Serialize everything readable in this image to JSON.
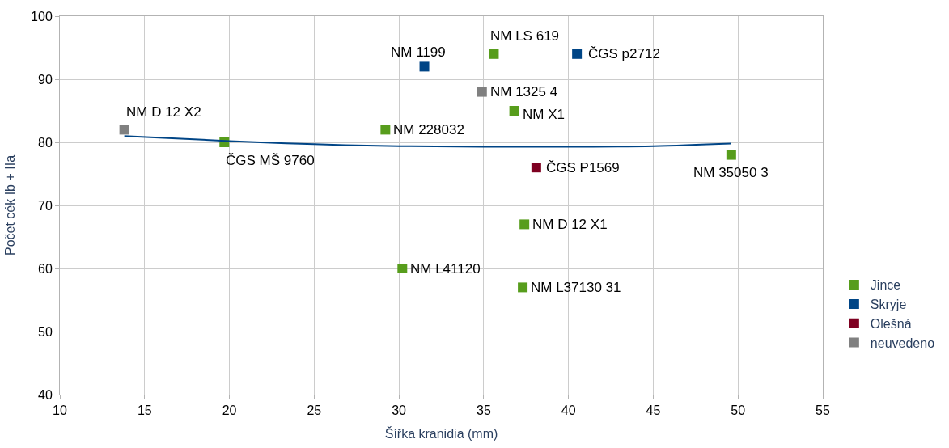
{
  "chart_data": {
    "type": "scatter",
    "xlabel": "Šířka kranidia (mm)",
    "ylabel": "Počet cék Ib + IIa",
    "xlim": [
      10,
      55
    ],
    "xticks": [
      10,
      15,
      20,
      25,
      30,
      35,
      40,
      45,
      50,
      55
    ],
    "ylim": [
      40,
      100
    ],
    "yticks": [
      40,
      50,
      60,
      70,
      80,
      90,
      100
    ],
    "grid": true,
    "legend": "right",
    "marker": "square",
    "series": [
      {
        "name": "Jince",
        "color": "#579d1c",
        "x": [
          19.7,
          29.2,
          35.6,
          36.8,
          37.4,
          37.3,
          30.2,
          49.6
        ],
        "values": [
          80,
          82,
          94,
          85,
          67,
          57,
          60,
          78
        ]
      },
      {
        "name": "Skryje",
        "color": "#004586",
        "x": [
          31.5,
          40.5
        ],
        "values": [
          92,
          94
        ]
      },
      {
        "name": "Olešná",
        "color": "#7e0021",
        "x": [
          38.1
        ],
        "values": [
          76
        ]
      },
      {
        "name": "neuvedeno",
        "color": "#808080",
        "x": [
          13.8,
          34.9
        ],
        "values": [
          82,
          88
        ]
      },
      {
        "type": "line",
        "color": "#004586",
        "marker": "none",
        "x": [
          13.8,
          20,
          25,
          30,
          35,
          40,
          45,
          49.6
        ],
        "values": [
          81,
          80.2,
          79.7,
          79.4,
          79.3,
          79.3,
          79.4,
          79.8
        ]
      }
    ],
    "annotations": [
      {
        "text": "NM D 12 X2",
        "x": 13.8,
        "y": 82
      },
      {
        "text": "ČGS MŠ 9760",
        "x": 19.7,
        "y": 80
      },
      {
        "text": "NM 228032",
        "x": 29.2,
        "y": 82
      },
      {
        "text": "NM 1199",
        "x": 31.5,
        "y": 92
      },
      {
        "text": "NM LS 619",
        "x": 35.6,
        "y": 94
      },
      {
        "text": "NM 1325 4",
        "x": 34.9,
        "y": 88
      },
      {
        "text": "NM X1",
        "x": 36.8,
        "y": 85
      },
      {
        "text": "ČGS p2712",
        "x": 40.5,
        "y": 94
      },
      {
        "text": "ČGS P1569",
        "x": 38.1,
        "y": 76
      },
      {
        "text": "NM 35050 3",
        "x": 49.6,
        "y": 78
      },
      {
        "text": "NM D 12 X1",
        "x": 37.4,
        "y": 67
      },
      {
        "text": "NM L41120",
        "x": 30.2,
        "y": 60
      },
      {
        "text": "NM L37130 31",
        "x": 37.3,
        "y": 57
      }
    ]
  }
}
